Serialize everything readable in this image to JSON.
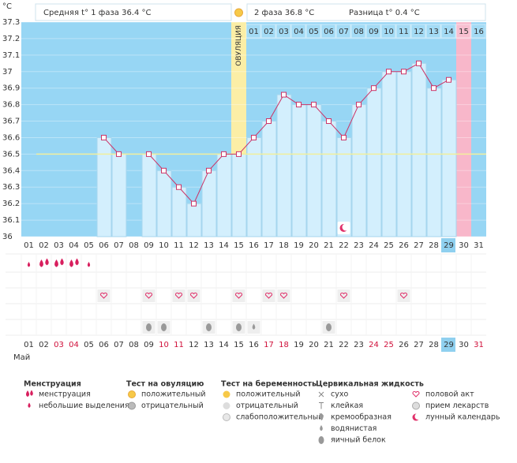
{
  "header": {
    "phase1": "Средняя t° 1 фаза 36.4 °C",
    "phase2": "2 фаза 36.8 °C",
    "difference": "Разница t° 0.4 °C"
  },
  "chart_data": {
    "type": "line",
    "y_unit": "°С",
    "categories": [
      "01",
      "02",
      "03",
      "04",
      "05",
      "06",
      "07",
      "08",
      "09",
      "10",
      "11",
      "12",
      "13",
      "14",
      "15",
      "16",
      "17",
      "18",
      "19",
      "20",
      "21",
      "22",
      "23",
      "24",
      "25",
      "26",
      "27",
      "28",
      "29",
      "30",
      "31"
    ],
    "series": [
      {
        "color": "#cc3366",
        "values": [
          null,
          null,
          null,
          null,
          null,
          36.6,
          36.5,
          null,
          36.5,
          36.4,
          36.3,
          36.2,
          36.4,
          36.5,
          36.5,
          36.6,
          36.7,
          36.86,
          36.8,
          36.8,
          36.7,
          36.6,
          36.8,
          36.9,
          37.0,
          37.0,
          37.05,
          36.9,
          36.95,
          null,
          null
        ]
      }
    ],
    "bar_color": "#d3effd",
    "ylim": [
      36,
      37.3
    ],
    "yticks": [
      36,
      36.1,
      36.2,
      36.3,
      36.4,
      36.5,
      36.6,
      36.7,
      36.8,
      36.9,
      37,
      37.1,
      37.2,
      37.3
    ],
    "cover_line": 36.5,
    "ovulation_day": "15",
    "ovulation_label": "ОВУЛЯЦИЯ",
    "phase2_days": [
      "01",
      "02",
      "03",
      "04",
      "05",
      "06",
      "07",
      "08",
      "09",
      "10",
      "11",
      "12",
      "13",
      "14",
      "15",
      "16"
    ],
    "today": "29",
    "period_forecast_day": "30",
    "moon_day": "22",
    "weekend_days": [
      "03",
      "04",
      "10",
      "11",
      "17",
      "18",
      "24",
      "25",
      "31"
    ],
    "month": "Май"
  },
  "symbols": {
    "menstruation": [
      "02",
      "03",
      "04"
    ],
    "light_bleeding": [
      "01",
      "05"
    ],
    "intercourse": [
      "06",
      "09",
      "11",
      "12",
      "15",
      "17",
      "18",
      "22",
      "26"
    ],
    "egg_white": [
      "09",
      "10",
      "13",
      "15",
      "21"
    ],
    "watery": [
      "16"
    ]
  },
  "legend": {
    "groups": [
      {
        "title": "Менструация",
        "items": [
          "менструация",
          "небольшие выделения"
        ]
      },
      {
        "title": "Тест на овуляцию",
        "items": [
          "положительный",
          "отрицательный"
        ]
      },
      {
        "title": "Тест на беременность",
        "items": [
          "положительный",
          "отрицательный",
          "слабоположительный"
        ]
      },
      {
        "title": "Цервикальная жидкость",
        "items": [
          "сухо",
          "клейкая",
          "кремообразная",
          "водянистая",
          "яичный белок"
        ]
      },
      {
        "items": [
          "половой акт",
          "прием лекарств",
          "лунный календарь"
        ]
      }
    ]
  }
}
